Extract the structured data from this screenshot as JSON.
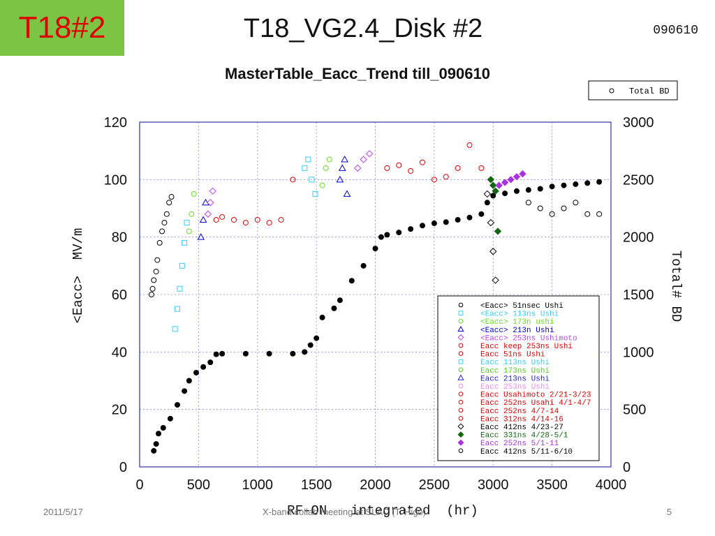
{
  "slide": {
    "tag": "T18#2",
    "title": "T18_VG2.4_Disk #2",
    "date": "090610",
    "footer_date": "2011/5/17",
    "footer_center": "X-band collab meeting at SLAC (T. Higo)",
    "page_number": "5"
  },
  "colors": {
    "tag_bg": "#7cc444",
    "tag_text": "#e00000"
  },
  "chart_data": {
    "type": "scatter",
    "title": "MasterTable_Eacc_Trend till_090610",
    "xlabel": "RF-ON   integrated  (hr)",
    "ylabel": "<Eacc>  MV/m",
    "y2label": "Total# BD",
    "xlim": [
      0,
      4000
    ],
    "ylim": [
      0,
      120
    ],
    "y2lim": [
      0,
      3000
    ],
    "xticks": [
      "0",
      "500",
      "1000",
      "1500",
      "2000",
      "2500",
      "3000",
      "3500",
      "4000"
    ],
    "yticks": [
      "0",
      "20",
      "40",
      "60",
      "80",
      "100",
      "120"
    ],
    "y2ticks": [
      "0",
      "500",
      "1000",
      "1500",
      "2000",
      "2500",
      "3000"
    ],
    "grid": true,
    "legend_top": {
      "placement": "top-right",
      "label": "Total BD",
      "marker": "circle",
      "color": "#000000"
    },
    "legend": [
      {
        "label": "<Eacc>  51nsec Ushi",
        "color": "#000000",
        "marker": "circle"
      },
      {
        "label": "<Eacc>  113ns Ushi",
        "color": "#33ccff",
        "marker": "square"
      },
      {
        "label": "<Eacc>  173n ushi",
        "color": "#66dd22",
        "marker": "circle"
      },
      {
        "label": "<Eacc>  213n Ushi",
        "color": "#0000cc",
        "marker": "triangle"
      },
      {
        "label": "<Eacc>  253ns Ushimoto",
        "color": "#bb44ee",
        "marker": "diamond"
      },
      {
        "label": "Eacc keep 253ns Ushi",
        "color": "#dd0000",
        "marker": "circle"
      },
      {
        "label": "Eacc 51ns Ushi",
        "color": "#dd0000",
        "marker": "circle"
      },
      {
        "label": "Eacc 113ns Ushi",
        "color": "#33ccff",
        "marker": "square"
      },
      {
        "label": "Eacc 173ns Ushi",
        "color": "#55cc22",
        "marker": "circle"
      },
      {
        "label": "Eacc 213ns Ushi",
        "color": "#2222cc",
        "marker": "triangle"
      },
      {
        "label": "Eacc  253ns Ushi",
        "color": "#ee88ee",
        "marker": "circle"
      },
      {
        "label": "Eacc Usahimoto 2/21-3/23",
        "color": "#dd0000",
        "marker": "circle"
      },
      {
        "label": "Eacc  252ns Usahi 4/1-4/7",
        "color": "#dd0000",
        "marker": "circle"
      },
      {
        "label": "Eacc 252ns 4/7-14",
        "color": "#dd0000",
        "marker": "circle"
      },
      {
        "label": "Eacc 312ns 4/14-16",
        "color": "#dd0000",
        "marker": "circle"
      },
      {
        "label": "Eacc 412ns 4/23-27",
        "color": "#000000",
        "marker": "diamond"
      },
      {
        "label": "Eacc 331ns 4/28-5/1",
        "color": "#116611",
        "marker": "diamond-filled"
      },
      {
        "label": "Eacc 252ns 5/1-11",
        "color": "#aa33dd",
        "marker": "diamond-filled"
      },
      {
        "label": "Eacc  412ns  5/11-6/10",
        "color": "#000000",
        "marker": "circle"
      }
    ],
    "series": [
      {
        "name": "Total BD",
        "axis": "y2",
        "color": "#000000",
        "marker": "filled-circle",
        "x": [
          120,
          140,
          160,
          200,
          260,
          320,
          380,
          420,
          480,
          540,
          600,
          650,
          700,
          900,
          1100,
          1300,
          1400,
          1450,
          1500,
          1550,
          1650,
          1700,
          1800,
          1900,
          2000,
          2050,
          2100,
          2200,
          2300,
          2400,
          2500,
          2600,
          2700,
          2800,
          2900,
          2950,
          3000,
          3100,
          3200,
          3300,
          3400,
          3500,
          3600,
          3700,
          3800,
          3900
        ],
        "y": [
          140,
          200,
          290,
          340,
          420,
          540,
          660,
          750,
          820,
          870,
          910,
          980,
          985,
          985,
          985,
          985,
          1000,
          1060,
          1120,
          1300,
          1380,
          1450,
          1620,
          1750,
          1900,
          2000,
          2020,
          2040,
          2070,
          2100,
          2120,
          2130,
          2150,
          2170,
          2200,
          2300,
          2360,
          2380,
          2400,
          2410,
          2420,
          2440,
          2450,
          2460,
          2470,
          2480
        ]
      },
      {
        "name": "<Eacc>  51nsec Ushi",
        "axis": "y",
        "color": "#000000",
        "marker": "circle",
        "x": [
          100,
          110,
          120,
          140,
          150,
          170,
          190,
          210,
          230,
          250,
          270
        ],
        "y": [
          60,
          62,
          65,
          68,
          72,
          78,
          82,
          85,
          88,
          92,
          94
        ]
      },
      {
        "name": "<Eacc>  113ns Ushi",
        "axis": "y",
        "color": "#33ccff",
        "marker": "square",
        "x": [
          300,
          320,
          340,
          360,
          380,
          400,
          1400,
          1430,
          1460,
          1490
        ],
        "y": [
          48,
          55,
          62,
          70,
          78,
          85,
          104,
          107,
          100,
          95
        ]
      },
      {
        "name": "<Eacc>  173n ushi",
        "axis": "y",
        "color": "#66dd22",
        "marker": "circle",
        "x": [
          420,
          440,
          460,
          1550,
          1580,
          1610
        ],
        "y": [
          82,
          88,
          95,
          98,
          104,
          107
        ]
      },
      {
        "name": "<Eacc>  213n Ushi",
        "axis": "y",
        "color": "#0000cc",
        "marker": "triangle",
        "x": [
          520,
          540,
          560,
          1700,
          1720,
          1740,
          1760
        ],
        "y": [
          80,
          86,
          92,
          100,
          104,
          107,
          95
        ]
      },
      {
        "name": "<Eacc>  253ns Ushimoto",
        "axis": "y",
        "color": "#bb44ee",
        "marker": "diamond",
        "x": [
          580,
          600,
          620,
          1850,
          1900,
          1950
        ],
        "y": [
          88,
          92,
          96,
          104,
          107,
          109
        ]
      },
      {
        "name": "Eacc keep 253ns Ushi",
        "axis": "y",
        "color": "#dd0000",
        "marker": "circle",
        "x": [
          650,
          700,
          800,
          900,
          1000,
          1100,
          1200,
          1300,
          2100,
          2200,
          2300,
          2400,
          2500,
          2600,
          2700,
          2800,
          2900
        ],
        "y": [
          86,
          87,
          86,
          85,
          86,
          85,
          86,
          100,
          104,
          105,
          103,
          106,
          100,
          101,
          104,
          112,
          104
        ]
      },
      {
        "name": "Eacc 412ns 4/23-27",
        "axis": "y",
        "color": "#000000",
        "marker": "diamond",
        "x": [
          2950,
          2980,
          3000,
          3020
        ],
        "y": [
          95,
          85,
          75,
          65
        ]
      },
      {
        "name": "Eacc 331ns 4/28-5/1",
        "axis": "y",
        "color": "#116611",
        "marker": "diamond-filled",
        "x": [
          2980,
          3000,
          3020,
          3040
        ],
        "y": [
          100,
          98,
          96,
          82
        ]
      },
      {
        "name": "Eacc 252ns 5/1-11",
        "axis": "y",
        "color": "#aa33dd",
        "marker": "diamond-filled",
        "x": [
          3050,
          3100,
          3150,
          3200,
          3250
        ],
        "y": [
          98,
          99,
          100,
          101,
          102
        ]
      },
      {
        "name": "Eacc  412ns  5/11-6/10",
        "axis": "y",
        "color": "#000000",
        "marker": "circle",
        "x": [
          3300,
          3400,
          3500,
          3600,
          3700,
          3800,
          3900
        ],
        "y": [
          92,
          90,
          88,
          90,
          92,
          88,
          88
        ]
      }
    ]
  }
}
